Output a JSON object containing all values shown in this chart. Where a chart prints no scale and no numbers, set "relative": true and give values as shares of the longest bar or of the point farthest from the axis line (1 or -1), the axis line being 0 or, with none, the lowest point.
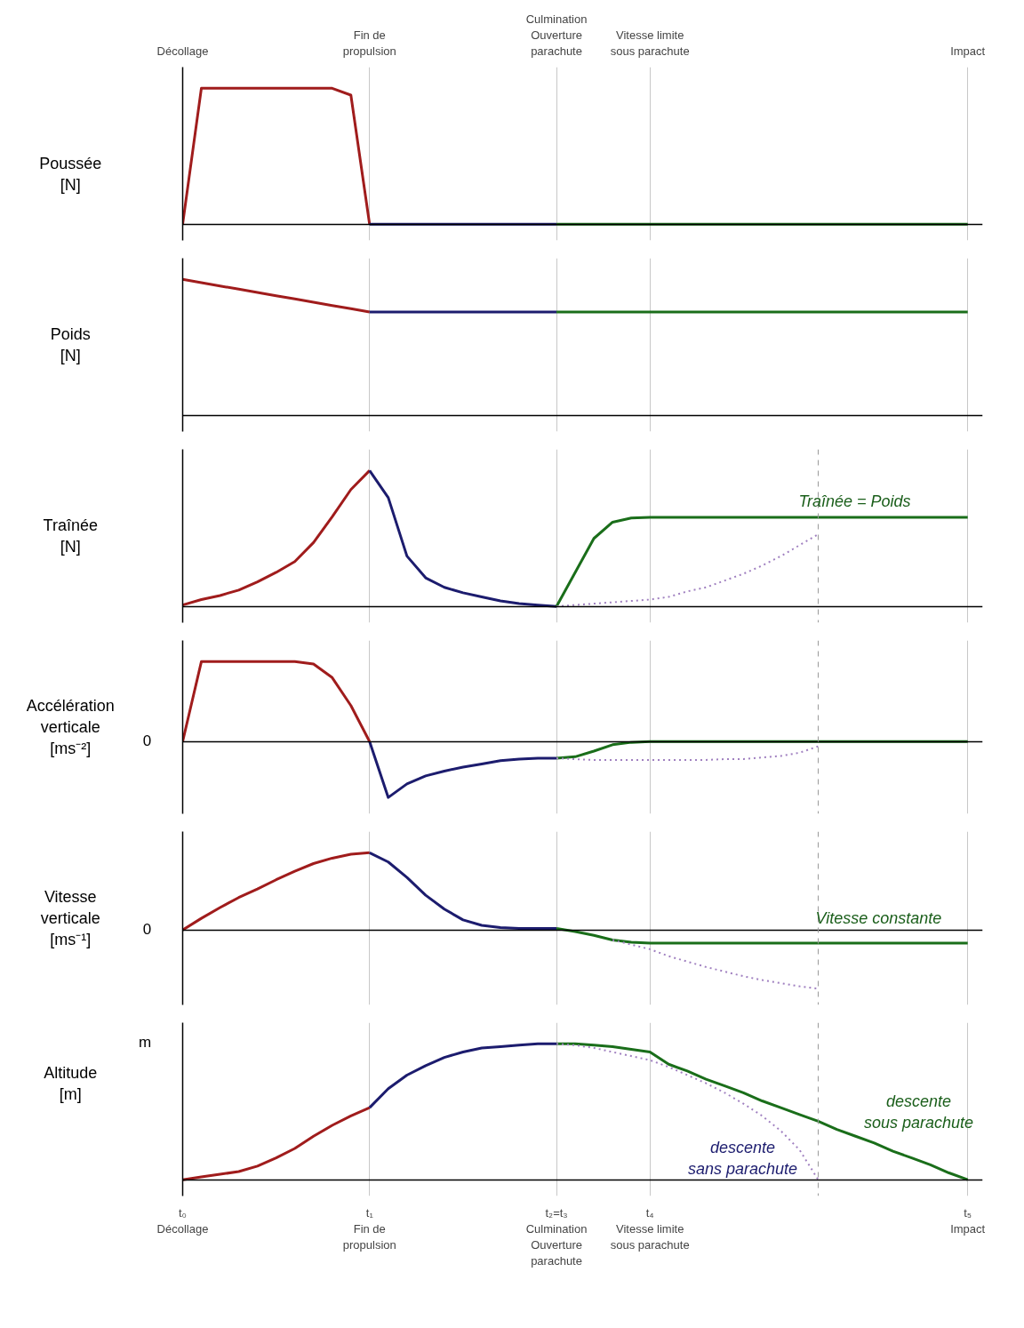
{
  "chart_data": [
    {
      "type": "line",
      "ylabel": "Poussée\n[N]",
      "relative": true,
      "grid": "x",
      "tick_labels": "x",
      "categories": [
        "Décollage",
        null,
        null,
        null,
        null,
        null,
        null,
        null,
        null,
        null,
        "Fin de\npropulsion",
        null,
        null,
        null,
        null,
        null,
        null,
        null,
        null,
        null,
        "Culmination\nOuverture\nparachute",
        null,
        null,
        null,
        null,
        "Vitesse limite\nsous parachute",
        null,
        null,
        null,
        null,
        null,
        null,
        null,
        null,
        null,
        null,
        null,
        null,
        null,
        null,
        null,
        null,
        "Impact"
      ],
      "series": [
        {
          "color": "#a01c1c",
          "values": [
            0,
            1,
            1,
            1,
            1,
            1,
            1,
            1,
            1,
            0.95,
            0,
            null,
            null,
            null,
            null,
            null,
            null,
            null,
            null,
            null,
            null,
            null,
            null,
            null,
            null,
            null,
            null,
            null,
            null,
            null,
            null,
            null,
            null,
            null,
            null,
            null,
            null,
            null,
            null,
            null,
            null,
            null,
            null
          ]
        },
        {
          "color": "#1c1c6e",
          "values": [
            null,
            null,
            null,
            null,
            null,
            null,
            null,
            null,
            null,
            null,
            0,
            0,
            0,
            0,
            0,
            0,
            0,
            0,
            0,
            0,
            0,
            null,
            null,
            null,
            null,
            null,
            null,
            null,
            null,
            null,
            null,
            null,
            null,
            null,
            null,
            null,
            null,
            null,
            null,
            null,
            null,
            null,
            null
          ]
        },
        {
          "color": "#1a6e1a",
          "values": [
            null,
            null,
            null,
            null,
            null,
            null,
            null,
            null,
            null,
            null,
            null,
            null,
            null,
            null,
            null,
            null,
            null,
            null,
            null,
            null,
            0,
            0,
            0,
            0,
            0,
            0,
            0,
            0,
            0,
            0,
            0,
            0,
            0,
            0,
            0,
            0,
            0,
            0,
            0,
            0,
            0,
            0,
            0
          ]
        }
      ]
    },
    {
      "type": "line",
      "ylabel": "Poids\n[N]",
      "relative": true,
      "grid": "x",
      "tick_labels": false,
      "categories": [
        null,
        null,
        null,
        null,
        null,
        null,
        null,
        null,
        null,
        null,
        null,
        null,
        null,
        null,
        null,
        null,
        null,
        null,
        null,
        null,
        null,
        null,
        null,
        null,
        null,
        null,
        null,
        null,
        null,
        null,
        null,
        null,
        null,
        null,
        null,
        null,
        null,
        null,
        null,
        null,
        null,
        null,
        null
      ],
      "series": [
        {
          "color": "#a01c1c",
          "values": [
            1,
            0.976,
            0.952,
            0.928,
            0.904,
            0.88,
            0.856,
            0.832,
            0.808,
            0.784,
            0.76,
            null,
            null,
            null,
            null,
            null,
            null,
            null,
            null,
            null,
            null,
            null,
            null,
            null,
            null,
            null,
            null,
            null,
            null,
            null,
            null,
            null,
            null,
            null,
            null,
            null,
            null,
            null,
            null,
            null,
            null,
            null,
            null
          ]
        },
        {
          "color": "#1c1c6e",
          "values": [
            null,
            null,
            null,
            null,
            null,
            null,
            null,
            null,
            null,
            null,
            0.76,
            0.76,
            0.76,
            0.76,
            0.76,
            0.76,
            0.76,
            0.76,
            0.76,
            0.76,
            0.76,
            null,
            null,
            null,
            null,
            null,
            null,
            null,
            null,
            null,
            null,
            null,
            null,
            null,
            null,
            null,
            null,
            null,
            null,
            null,
            null,
            null,
            null
          ]
        },
        {
          "color": "#1a6e1a",
          "values": [
            null,
            null,
            null,
            null,
            null,
            null,
            null,
            null,
            null,
            null,
            null,
            null,
            null,
            null,
            null,
            null,
            null,
            null,
            null,
            null,
            0.76,
            0.76,
            0.76,
            0.76,
            0.76,
            0.76,
            0.76,
            0.76,
            0.76,
            0.76,
            0.76,
            0.76,
            0.76,
            0.76,
            0.76,
            0.76,
            0.76,
            0.76,
            0.76,
            0.76,
            0.76,
            0.76,
            0.76
          ]
        }
      ]
    },
    {
      "type": "line",
      "ylabel": "Traînée\n[N]",
      "relative": true,
      "grid": "x",
      "tick_labels": false,
      "categories": [
        null,
        null,
        null,
        null,
        null,
        null,
        null,
        null,
        null,
        null,
        null,
        null,
        null,
        null,
        null,
        null,
        null,
        null,
        null,
        null,
        null,
        null,
        null,
        null,
        null,
        null,
        null,
        null,
        null,
        null,
        null,
        null,
        null,
        null,
        null,
        null,
        null,
        null,
        null,
        null,
        null,
        null,
        null
      ],
      "annotations": [
        "Traînée = Poids"
      ],
      "series": [
        {
          "color": "#a01c1c",
          "values": [
            0.01,
            0.05,
            0.08,
            0.12,
            0.18,
            0.25,
            0.33,
            0.47,
            0.66,
            0.86,
            1,
            null,
            null,
            null,
            null,
            null,
            null,
            null,
            null,
            null,
            null,
            null,
            null,
            null,
            null,
            null,
            null,
            null,
            null,
            null,
            null,
            null,
            null,
            null,
            null,
            null,
            null,
            null,
            null,
            null,
            null,
            null,
            null
          ]
        },
        {
          "color": "#1c1c6e",
          "values": [
            null,
            null,
            null,
            null,
            null,
            null,
            null,
            null,
            null,
            null,
            1,
            0.8,
            0.37,
            0.21,
            0.14,
            0.1,
            0.07,
            0.04,
            0.02,
            0.01,
            0,
            null,
            null,
            null,
            null,
            null,
            null,
            null,
            null,
            null,
            null,
            null,
            null,
            null,
            null,
            null,
            null,
            null,
            null,
            null,
            null,
            null,
            null
          ]
        },
        {
          "color": "#1a6e1a",
          "values": [
            null,
            null,
            null,
            null,
            null,
            null,
            null,
            null,
            null,
            null,
            null,
            null,
            null,
            null,
            null,
            null,
            null,
            null,
            null,
            null,
            0,
            0.25,
            0.5,
            0.62,
            0.65,
            0.655,
            0.655,
            0.655,
            0.655,
            0.655,
            0.655,
            0.655,
            0.655,
            0.655,
            0.655,
            0.655,
            0.655,
            0.655,
            0.655,
            0.655,
            0.655,
            0.655,
            0.655
          ]
        },
        {
          "color": "#a080c0",
          "line_style": "dotted",
          "values": [
            null,
            null,
            null,
            null,
            null,
            null,
            null,
            null,
            null,
            null,
            null,
            null,
            null,
            null,
            null,
            null,
            null,
            null,
            null,
            null,
            0,
            0.01,
            0.02,
            0.03,
            0.04,
            0.05,
            0.07,
            0.11,
            0.14,
            0.19,
            0.24,
            0.3,
            0.37,
            0.45,
            0.53,
            null,
            null,
            null,
            null,
            null,
            null,
            null,
            null
          ]
        }
      ]
    },
    {
      "type": "line",
      "ylabel": "Accélération\nverticale\n[ms⁻²]",
      "relative": true,
      "grid": "x",
      "tick_labels": false,
      "categories": [
        null,
        null,
        null,
        null,
        null,
        null,
        null,
        null,
        null,
        null,
        null,
        null,
        null,
        null,
        null,
        null,
        null,
        null,
        null,
        null,
        null,
        null,
        null,
        null,
        null,
        null,
        null,
        null,
        null,
        null,
        null,
        null,
        null,
        null,
        null,
        null,
        null,
        null,
        null,
        null,
        null,
        null,
        null
      ],
      "annotations": [
        "0"
      ],
      "series": [
        {
          "color": "#a01c1c",
          "values": [
            0,
            1,
            1,
            1,
            1,
            1,
            1,
            0.97,
            0.8,
            0.45,
            0,
            null,
            null,
            null,
            null,
            null,
            null,
            null,
            null,
            null,
            null,
            null,
            null,
            null,
            null,
            null,
            null,
            null,
            null,
            null,
            null,
            null,
            null,
            null,
            null,
            null,
            null,
            null,
            null,
            null,
            null,
            null,
            null
          ]
        },
        {
          "color": "#1c1c6e",
          "values": [
            null,
            null,
            null,
            null,
            null,
            null,
            null,
            null,
            null,
            null,
            0,
            -0.7,
            -0.53,
            -0.43,
            -0.37,
            -0.32,
            -0.28,
            -0.24,
            -0.22,
            -0.21,
            -0.21,
            null,
            null,
            null,
            null,
            null,
            null,
            null,
            null,
            null,
            null,
            null,
            null,
            null,
            null,
            null,
            null,
            null,
            null,
            null,
            null,
            null,
            null
          ]
        },
        {
          "color": "#1a6e1a",
          "values": [
            null,
            null,
            null,
            null,
            null,
            null,
            null,
            null,
            null,
            null,
            null,
            null,
            null,
            null,
            null,
            null,
            null,
            null,
            null,
            null,
            -0.21,
            -0.19,
            -0.12,
            -0.04,
            -0.01,
            0,
            0,
            0,
            0,
            0,
            0,
            0,
            0,
            0,
            0,
            0,
            0,
            0,
            0,
            0,
            0,
            0,
            0
          ]
        },
        {
          "color": "#a080c0",
          "line_style": "dotted",
          "values": [
            null,
            null,
            null,
            null,
            null,
            null,
            null,
            null,
            null,
            null,
            null,
            null,
            null,
            null,
            null,
            null,
            null,
            null,
            null,
            null,
            -0.21,
            -0.22,
            -0.23,
            -0.23,
            -0.23,
            -0.23,
            -0.23,
            -0.23,
            -0.23,
            -0.22,
            -0.22,
            -0.2,
            -0.18,
            -0.14,
            -0.06,
            null,
            null,
            null,
            null,
            null,
            null,
            null,
            null
          ]
        }
      ]
    },
    {
      "type": "line",
      "ylabel": "Vitesse\nverticale\n[ms⁻¹]",
      "relative": true,
      "grid": "x",
      "tick_labels": false,
      "categories": [
        null,
        null,
        null,
        null,
        null,
        null,
        null,
        null,
        null,
        null,
        null,
        null,
        null,
        null,
        null,
        null,
        null,
        null,
        null,
        null,
        null,
        null,
        null,
        null,
        null,
        null,
        null,
        null,
        null,
        null,
        null,
        null,
        null,
        null,
        null,
        null,
        null,
        null,
        null,
        null,
        null,
        null,
        null
      ],
      "annotations": [
        "0",
        "Vitesse constante"
      ],
      "series": [
        {
          "color": "#a01c1c",
          "values": [
            0,
            0.15,
            0.29,
            0.42,
            0.53,
            0.65,
            0.76,
            0.86,
            0.93,
            0.98,
            1,
            null,
            null,
            null,
            null,
            null,
            null,
            null,
            null,
            null,
            null,
            null,
            null,
            null,
            null,
            null,
            null,
            null,
            null,
            null,
            null,
            null,
            null,
            null,
            null,
            null,
            null,
            null,
            null,
            null,
            null,
            null,
            null
          ]
        },
        {
          "color": "#1c1c6e",
          "values": [
            null,
            null,
            null,
            null,
            null,
            null,
            null,
            null,
            null,
            null,
            1,
            0.88,
            0.68,
            0.45,
            0.27,
            0.13,
            0.06,
            0.03,
            0.02,
            0.02,
            0.02,
            null,
            null,
            null,
            null,
            null,
            null,
            null,
            null,
            null,
            null,
            null,
            null,
            null,
            null,
            null,
            null,
            null,
            null,
            null,
            null,
            null,
            null
          ]
        },
        {
          "color": "#1a6e1a",
          "values": [
            null,
            null,
            null,
            null,
            null,
            null,
            null,
            null,
            null,
            null,
            null,
            null,
            null,
            null,
            null,
            null,
            null,
            null,
            null,
            null,
            0.02,
            -0.02,
            -0.07,
            -0.13,
            -0.16,
            -0.17,
            -0.17,
            -0.17,
            -0.17,
            -0.17,
            -0.17,
            -0.17,
            -0.17,
            -0.17,
            -0.17,
            -0.17,
            -0.17,
            -0.17,
            -0.17,
            -0.17,
            -0.17,
            -0.17,
            -0.17
          ]
        },
        {
          "color": "#a080c0",
          "line_style": "dotted",
          "values": [
            null,
            null,
            null,
            null,
            null,
            null,
            null,
            null,
            null,
            null,
            null,
            null,
            null,
            null,
            null,
            null,
            null,
            null,
            null,
            null,
            null,
            null,
            null,
            -0.13,
            -0.19,
            -0.25,
            -0.34,
            -0.41,
            -0.48,
            -0.54,
            -0.6,
            -0.65,
            -0.69,
            -0.73,
            -0.76,
            null,
            null,
            null,
            null,
            null,
            null,
            null,
            null
          ]
        }
      ]
    },
    {
      "type": "line",
      "ylabel": "Altitude\n[m]",
      "relative": true,
      "grid": "x",
      "tick_labels": "x",
      "categories": [
        "t₀\nDécollage",
        null,
        null,
        null,
        null,
        null,
        null,
        null,
        null,
        null,
        "t₁\nFin de\npropulsion",
        null,
        null,
        null,
        null,
        null,
        null,
        null,
        null,
        null,
        "t₂=t₃\nCulmination\nOuverture\nparachute",
        null,
        null,
        null,
        null,
        "t₄\nVitesse limite\nsous parachute",
        null,
        null,
        null,
        null,
        null,
        null,
        null,
        null,
        null,
        null,
        null,
        null,
        null,
        null,
        null,
        null,
        "t₅\nImpact"
      ],
      "annotations": [
        "m",
        "descente\nsous parachute",
        "descente\nsans parachute"
      ],
      "series": [
        {
          "color": "#a01c1c",
          "values": [
            0,
            0.02,
            0.04,
            0.06,
            0.1,
            0.16,
            0.23,
            0.32,
            0.4,
            0.47,
            0.53,
            null,
            null,
            null,
            null,
            null,
            null,
            null,
            null,
            null,
            null,
            null,
            null,
            null,
            null,
            null,
            null,
            null,
            null,
            null,
            null,
            null,
            null,
            null,
            null,
            null,
            null,
            null,
            null,
            null,
            null,
            null,
            null
          ]
        },
        {
          "color": "#1c1c6e",
          "values": [
            null,
            null,
            null,
            null,
            null,
            null,
            null,
            null,
            null,
            null,
            0.53,
            0.67,
            0.77,
            0.84,
            0.9,
            0.94,
            0.97,
            0.98,
            0.99,
            1,
            1,
            null,
            null,
            null,
            null,
            null,
            null,
            null,
            null,
            null,
            null,
            null,
            null,
            null,
            null,
            null,
            null,
            null,
            null,
            null,
            null,
            null,
            null
          ]
        },
        {
          "color": "#1a6e1a",
          "values": [
            null,
            null,
            null,
            null,
            null,
            null,
            null,
            null,
            null,
            null,
            null,
            null,
            null,
            null,
            null,
            null,
            null,
            null,
            null,
            null,
            1,
            1,
            0.99,
            0.98,
            0.96,
            0.94,
            0.85,
            0.8,
            0.74,
            0.69,
            0.64,
            0.58,
            0.53,
            0.48,
            0.43,
            0.37,
            0.32,
            0.27,
            0.21,
            0.16,
            0.11,
            0.05,
            0
          ]
        },
        {
          "color": "#a080c0",
          "line_style": "dotted",
          "values": [
            null,
            null,
            null,
            null,
            null,
            null,
            null,
            null,
            null,
            null,
            null,
            null,
            null,
            null,
            null,
            null,
            null,
            null,
            null,
            null,
            1,
            0.99,
            0.97,
            0.94,
            0.91,
            0.88,
            0.83,
            0.77,
            0.71,
            0.64,
            0.56,
            0.47,
            0.36,
            0.22,
            0,
            null,
            null,
            null,
            null,
            null,
            null,
            null,
            null
          ]
        }
      ]
    }
  ]
}
